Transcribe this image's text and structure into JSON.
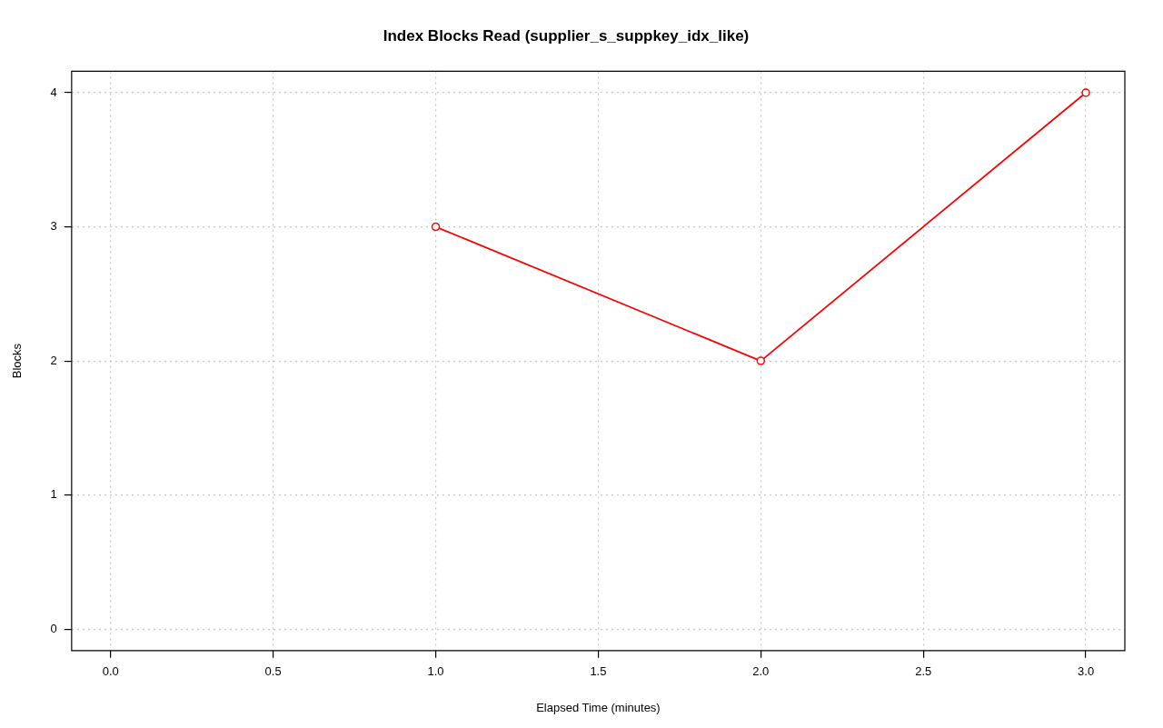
{
  "chart_data": {
    "type": "line",
    "title": "Index Blocks Read (supplier_s_suppkey_idx_like)",
    "xlabel": "Elapsed Time (minutes)",
    "ylabel": "Blocks",
    "x": [
      1,
      2,
      3
    ],
    "series": [
      {
        "color": "#ff0000",
        "values": [
          3,
          2,
          4
        ]
      }
    ],
    "xlim": [
      -0.12,
      3.12
    ],
    "xticks": [
      {
        "value": 0,
        "label": "0.0"
      },
      {
        "value": 0.5,
        "label": "0.5"
      },
      {
        "value": 1,
        "label": "1.0"
      },
      {
        "value": 1.5,
        "label": "1.5"
      },
      {
        "value": 2,
        "label": "2.0"
      },
      {
        "value": 2.5,
        "label": "2.5"
      },
      {
        "value": 3,
        "label": "3.0"
      }
    ],
    "ylim": [
      -0.16,
      4.16
    ],
    "yticks": [
      0,
      1,
      2,
      3,
      4
    ],
    "grid": true,
    "legend": false,
    "marker": "circle",
    "line_style": "solid"
  }
}
